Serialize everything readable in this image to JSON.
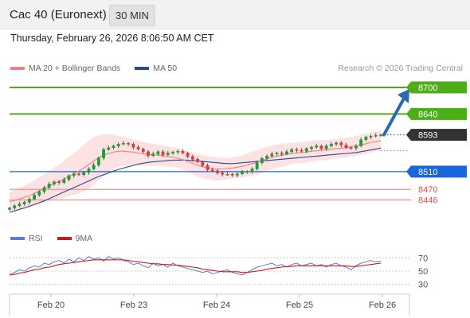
{
  "header": {
    "title": "Cac 40 (Euronext)",
    "timeframe": "30 MIN"
  },
  "datetime": "Thursday, February 26, 2026 8:06:50 AM CET",
  "credit": "Research © 2026 Trading Central",
  "colors": {
    "resistance": "#4caf18",
    "current": "#333333",
    "support": "#1a66dd",
    "support_line": "#f08888",
    "support_text": "#e05050",
    "ma20": "#f08080",
    "ma50": "#2a4a8a",
    "band": "#fbd8d8",
    "candle_up": "#1aa035",
    "candle_down": "#e03a3a",
    "arrow": "#2a68b0",
    "rsi": "#5a78e0",
    "rsi_ma": "#d01818"
  },
  "chart_data": [
    {
      "type": "candlestick",
      "interval": "30 MIN",
      "legend": [
        {
          "label": "MA 20 + Bollinger Bands",
          "color": "#f08080"
        },
        {
          "label": "MA 50",
          "color": "#2a4a8a"
        }
      ],
      "x_ticks": [
        "Feb 20",
        "Feb 23",
        "Feb 24",
        "Feb 25",
        "Feb 26"
      ],
      "ylim": [
        8395,
        8725
      ],
      "levels": [
        {
          "value": 8700,
          "label": "8700",
          "kind": "resistance"
        },
        {
          "value": 8640,
          "label": "8640",
          "kind": "resistance"
        },
        {
          "value": 8593,
          "label": "8593",
          "kind": "current"
        },
        {
          "value": 8510,
          "label": "8510",
          "kind": "support-pivot"
        },
        {
          "value": 8470,
          "label": "8470",
          "kind": "support"
        },
        {
          "value": 8446,
          "label": "8446",
          "kind": "support"
        }
      ],
      "close_series": [
        8428,
        8433,
        8437,
        8441,
        8448,
        8457,
        8465,
        8474,
        8482,
        8487,
        8485,
        8492,
        8501,
        8505,
        8503,
        8508,
        8516,
        8525,
        8541,
        8560,
        8564,
        8568,
        8572,
        8574,
        8572,
        8565,
        8561,
        8555,
        8546,
        8550,
        8555,
        8548,
        8552,
        8554,
        8556,
        8552,
        8544,
        8538,
        8532,
        8524,
        8514,
        8512,
        8507,
        8504,
        8504,
        8502,
        8505,
        8509,
        8510,
        8516,
        8530,
        8540,
        8545,
        8550,
        8552,
        8550,
        8555,
        8560,
        8558,
        8556,
        8562,
        8565,
        8568,
        8562,
        8568,
        8572,
        8575,
        8570,
        8564,
        8563,
        8568,
        8582,
        8588,
        8590,
        8592,
        8593
      ],
      "ma20_series": [
        8442,
        8445,
        8448,
        8452,
        8456,
        8461,
        8466,
        8472,
        8478,
        8483,
        8488,
        8493,
        8499,
        8505,
        8511,
        8518,
        8526,
        8534,
        8541,
        8547,
        8551,
        8554,
        8556,
        8556,
        8555,
        8554,
        8552,
        8550,
        8549,
        8548,
        8547,
        8546,
        8544,
        8543,
        8540,
        8537,
        8533,
        8529,
        8524,
        8521,
        8519,
        8517,
        8516,
        8516,
        8517,
        8518,
        8520,
        8522,
        8525,
        8528,
        8531,
        8535,
        8539,
        8542,
        8545,
        8547,
        8549,
        8551,
        8552,
        8553,
        8554,
        8556,
        8557,
        8558,
        8559,
        8561,
        8562,
        8563,
        8564,
        8566,
        8568,
        8570,
        8573,
        8576,
        8578,
        8580
      ],
      "ma50_series": [
        8418,
        8421,
        8425,
        8428,
        8432,
        8436,
        8440,
        8444,
        8449,
        8454,
        8459,
        8464,
        8469,
        8474,
        8479,
        8484,
        8489,
        8494,
        8499,
        8503,
        8507,
        8511,
        8515,
        8518,
        8521,
        8524,
        8527,
        8529,
        8531,
        8532,
        8533,
        8534,
        8535,
        8536,
        8536,
        8536,
        8536,
        8535,
        8534,
        8533,
        8532,
        8531,
        8530,
        8529,
        8528,
        8528,
        8529,
        8530,
        8531,
        8532,
        8533,
        8534,
        8535,
        8536,
        8537,
        8538,
        8539,
        8540,
        8541,
        8542,
        8543,
        8544,
        8545,
        8546,
        8547,
        8548,
        8549,
        8550,
        8551,
        8552,
        8553,
        8555,
        8557,
        8559,
        8561,
        8563
      ],
      "band_upper": [
        8464,
        8468,
        8473,
        8478,
        8484,
        8490,
        8497,
        8504,
        8512,
        8519,
        8526,
        8534,
        8543,
        8552,
        8561,
        8570,
        8580,
        8588,
        8592,
        8594,
        8594,
        8593,
        8591,
        8589,
        8586,
        8583,
        8580,
        8577,
        8575,
        8573,
        8571,
        8569,
        8567,
        8565,
        8562,
        8559,
        8556,
        8553,
        8550,
        8547,
        8545,
        8543,
        8542,
        8541,
        8541,
        8542,
        8544,
        8547,
        8551,
        8555,
        8559,
        8563,
        8566,
        8569,
        8571,
        8573,
        8574,
        8575,
        8576,
        8577,
        8578,
        8579,
        8580,
        8581,
        8582,
        8583,
        8584,
        8585,
        8586,
        8588,
        8590,
        8593,
        8596,
        8599,
        8601,
        8603
      ],
      "band_lower": [
        8420,
        8422,
        8423,
        8426,
        8428,
        8432,
        8435,
        8440,
        8444,
        8447,
        8450,
        8452,
        8455,
        8458,
        8461,
        8466,
        8472,
        8480,
        8490,
        8500,
        8508,
        8515,
        8521,
        8523,
        8524,
        8525,
        8524,
        8523,
        8523,
        8523,
        8523,
        8523,
        8521,
        8521,
        8518,
        8515,
        8510,
        8505,
        8498,
        8495,
        8493,
        8491,
        8490,
        8491,
        8493,
        8494,
        8496,
        8497,
        8499,
        8501,
        8503,
        8507,
        8512,
        8515,
        8519,
        8521,
        8524,
        8527,
        8528,
        8529,
        8530,
        8533,
        8534,
        8535,
        8536,
        8539,
        8540,
        8541,
        8542,
        8544,
        8546,
        8547,
        8550,
        8553,
        8555,
        8557
      ]
    },
    {
      "type": "line",
      "legend": [
        {
          "label": "RSI",
          "color": "#5a78e0"
        },
        {
          "label": "9MA",
          "color": "#d01818"
        }
      ],
      "ylim": [
        20,
        80
      ],
      "y_ticks": [
        70,
        50,
        30
      ],
      "rsi_series": [
        45,
        48,
        52,
        50,
        55,
        58,
        56,
        62,
        60,
        64,
        66,
        62,
        68,
        64,
        70,
        66,
        72,
        68,
        70,
        65,
        72,
        68,
        70,
        66,
        64,
        60,
        62,
        58,
        55,
        62,
        58,
        60,
        56,
        62,
        58,
        56,
        54,
        52,
        50,
        48,
        50,
        46,
        48,
        50,
        52,
        48,
        46,
        44,
        48,
        52,
        56,
        58,
        60,
        62,
        58,
        60,
        56,
        60,
        62,
        58,
        60,
        62,
        58,
        60,
        56,
        60,
        62,
        58,
        56,
        52,
        58,
        62,
        64,
        66,
        64,
        65
      ],
      "rsi_ma_series": [
        44,
        45,
        47,
        48,
        50,
        52,
        53,
        55,
        56,
        58,
        60,
        61,
        62,
        63,
        64,
        65,
        66,
        67,
        67,
        67,
        67,
        67,
        67,
        67,
        66,
        65,
        64,
        63,
        62,
        61,
        61,
        60,
        60,
        59,
        59,
        58,
        57,
        56,
        55,
        53,
        52,
        51,
        50,
        49,
        49,
        49,
        49,
        48,
        48,
        49,
        50,
        51,
        53,
        54,
        55,
        56,
        57,
        57,
        58,
        58,
        58,
        58,
        58,
        58,
        58,
        58,
        58,
        58,
        58,
        57,
        57,
        58,
        59,
        60,
        61,
        62
      ]
    }
  ]
}
